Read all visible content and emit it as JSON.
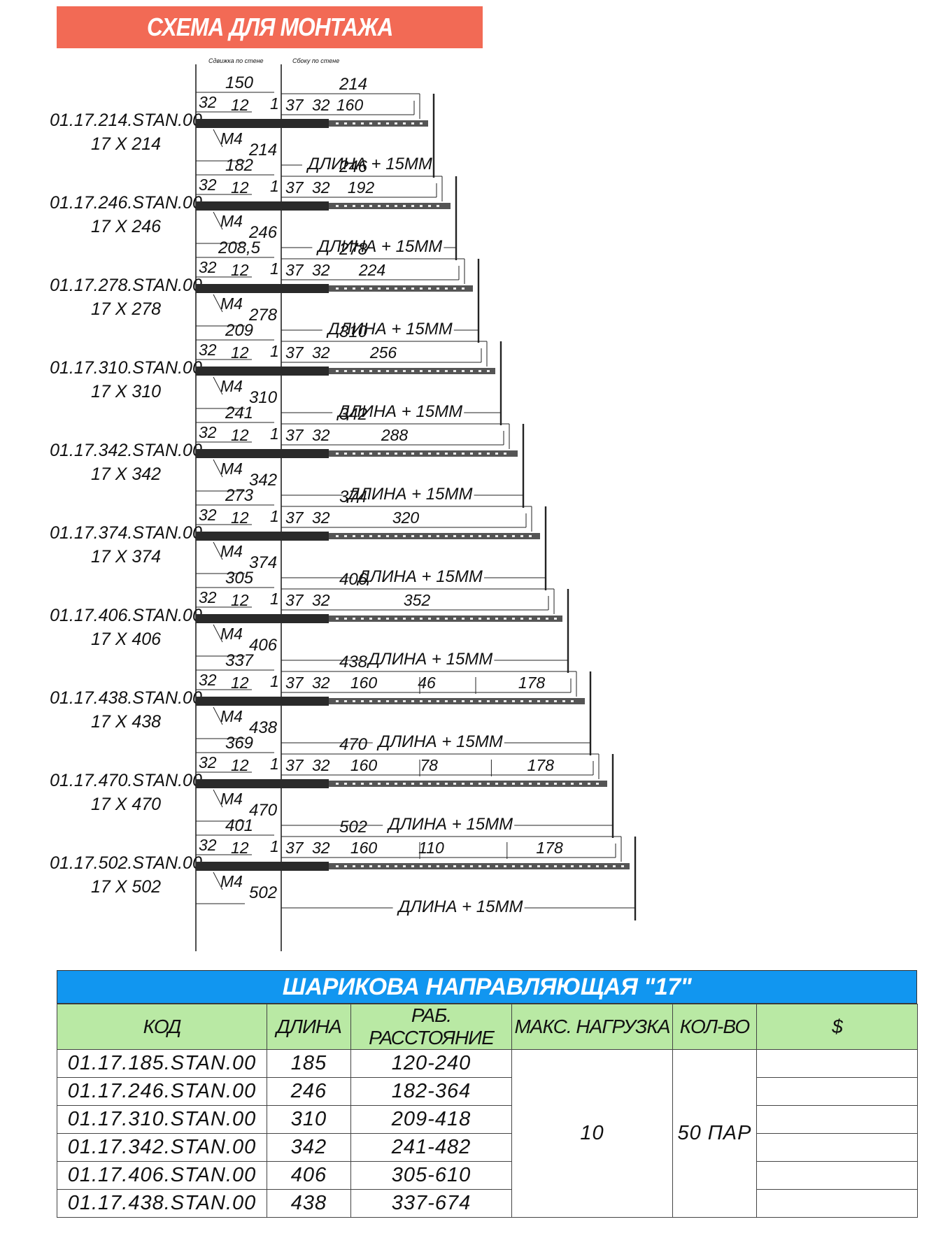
{
  "title": "СХЕМА ДЛЯ МОНТАЖА",
  "diagram": {
    "header_left": "Сдвижка по стене",
    "header_right": "Сбоку по стене",
    "dim_12": "12",
    "dim_32": "32",
    "dim_1": "1",
    "dim_37": "37",
    "screw": "M4",
    "length_note": "ДЛИНА + 15ММ",
    "rows": [
      {
        "code": "01.17.214.STAN.00",
        "size": "17 X 214",
        "length": "214",
        "top": "150",
        "right": [
          "160"
        ]
      },
      {
        "code": "01.17.246.STAN.00",
        "size": "17 X 246",
        "length": "246",
        "top": "182",
        "right": [
          "192"
        ]
      },
      {
        "code": "01.17.278.STAN.00",
        "size": "17 X 278",
        "length": "278",
        "top": "208,5",
        "right": [
          "224"
        ]
      },
      {
        "code": "01.17.310.STAN.00",
        "size": "17 X 310",
        "length": "310",
        "top": "209",
        "right": [
          "256"
        ]
      },
      {
        "code": "01.17.342.STAN.00",
        "size": "17 X 342",
        "length": "342",
        "top": "241",
        "right": [
          "288"
        ]
      },
      {
        "code": "01.17.374.STAN.00",
        "size": "17 X 374",
        "length": "374",
        "top": "273",
        "right": [
          "320"
        ]
      },
      {
        "code": "01.17.406.STAN.00",
        "size": "17 X 406",
        "length": "406",
        "top": "305",
        "right": [
          "352"
        ]
      },
      {
        "code": "01.17.438.STAN.00",
        "size": "17 X 438",
        "length": "438",
        "top": "337",
        "right": [
          "160",
          "46",
          "178"
        ]
      },
      {
        "code": "01.17.470.STAN.00",
        "size": "17 X 470",
        "length": "470",
        "top": "369",
        "right": [
          "160",
          "78",
          "178"
        ]
      },
      {
        "code": "01.17.502.STAN.00",
        "size": "17 X 502",
        "length": "502",
        "top": "401",
        "right": [
          "160",
          "110",
          "178"
        ]
      }
    ]
  },
  "table": {
    "title": "ШАРИКОВА НАПРАВЛЯЮЩАЯ \"17\"",
    "headers": {
      "code": "КОД",
      "length": "ДЛИНА",
      "distance": "РАБ. РАССТОЯНИЕ",
      "load": "МАКС. НАГРУЗКА",
      "qty": "КОЛ-ВО",
      "price": "$"
    },
    "load_value": "10",
    "qty_value": "50 ПАР",
    "rows": [
      {
        "code": "01.17.185.STAN.00",
        "length": "185",
        "distance": "120-240"
      },
      {
        "code": "01.17.246.STAN.00",
        "length": "246",
        "distance": "182-364"
      },
      {
        "code": "01.17.310.STAN.00",
        "length": "310",
        "distance": "209-418"
      },
      {
        "code": "01.17.342.STAN.00",
        "length": "342",
        "distance": "241-482"
      },
      {
        "code": "01.17.406.STAN.00",
        "length": "406",
        "distance": "305-610"
      },
      {
        "code": "01.17.438.STAN.00",
        "length": "438",
        "distance": "337-674"
      }
    ]
  }
}
